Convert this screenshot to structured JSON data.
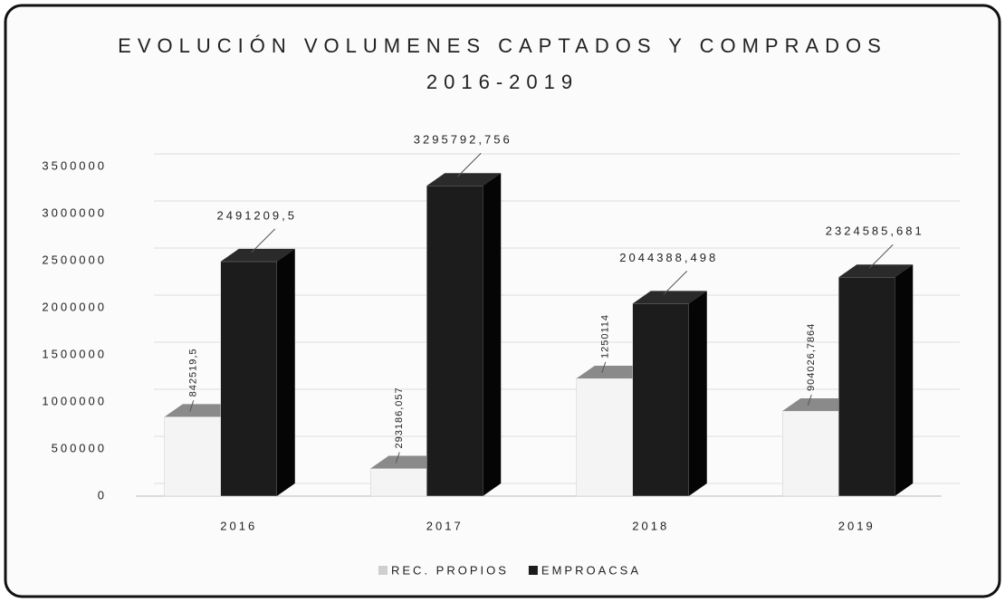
{
  "chart_data": {
    "type": "bar3d",
    "title": "EVOLUCIÓN VOLUMENES CAPTADOS Y COMPRADOS",
    "subtitle": "2016-2019",
    "categories": [
      "2016",
      "2017",
      "2018",
      "2019"
    ],
    "series": [
      {
        "name": "REC. PROPIOS",
        "color": "#f4f4f4",
        "values": [
          842519.5,
          293186.057,
          1250114,
          904026.7864
        ],
        "value_labels": [
          "842519,5",
          "293186,057",
          "1250114",
          "904026,7864"
        ]
      },
      {
        "name": "EMPROACSA",
        "color": "#1c1c1c",
        "values": [
          2491209.5,
          3295792.756,
          2044388.498,
          2324585.681
        ],
        "value_labels": [
          "2491209,5",
          "3295792,756",
          "2044388,498",
          "2324585,681"
        ]
      }
    ],
    "ylim": [
      0,
      3500000
    ],
    "yticks": [
      0,
      500000,
      1000000,
      1500000,
      2000000,
      2500000,
      3000000,
      3500000
    ],
    "grid": true,
    "legend": "bottom"
  }
}
